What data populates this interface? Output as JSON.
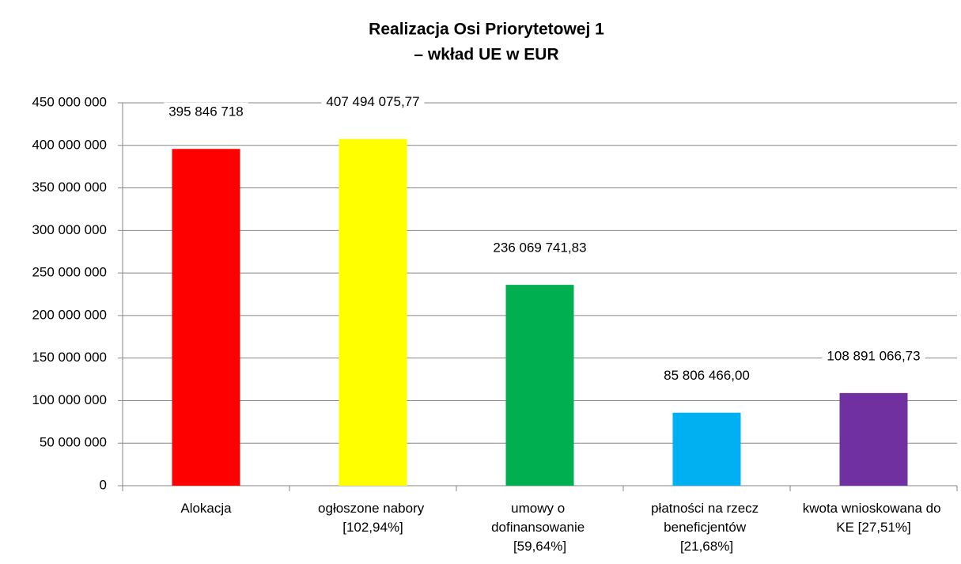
{
  "chart_data": {
    "type": "bar",
    "title": [
      "Realizacja Osi Priorytetowej 1",
      "– wkład UE w EUR"
    ],
    "categories": [
      "Alokacja",
      "ogłoszone nabory [102,94%]",
      "umowy o dofinansowanie [59,64%]",
      "płatności na rzecz beneficjentów [21,68%]",
      "kwota wnioskowana do KE [27,51%]"
    ],
    "values": [
      395846718,
      407494075.77,
      236069741.83,
      85806466.0,
      108891066.73
    ],
    "value_labels": [
      "395 846 718",
      "407 494 075,77",
      "236 069 741,83",
      "85 806 466,00",
      "108 891 066,73"
    ],
    "colors": [
      "#ff0000",
      "#ffff00",
      "#00b050",
      "#00b0f0",
      "#7030a0"
    ],
    "ylim": [
      0,
      450000000
    ],
    "yticks": [
      0,
      {
        "value": 50000000,
        "label": "50 000 000"
      },
      {
        "value": 100000000,
        "label": "100 000 000"
      },
      {
        "value": 150000000,
        "label": "150 000 000"
      },
      {
        "value": 200000000,
        "label": "200 000 000"
      },
      {
        "value": 250000000,
        "label": "250 000 000"
      },
      {
        "value": 300000000,
        "label": "300 000 000"
      },
      {
        "value": 350000000,
        "label": "350 000 000"
      },
      {
        "value": 400000000,
        "label": "400 000 000"
      },
      {
        "value": 450000000,
        "label": "450 000 000"
      }
    ],
    "grid": true
  }
}
